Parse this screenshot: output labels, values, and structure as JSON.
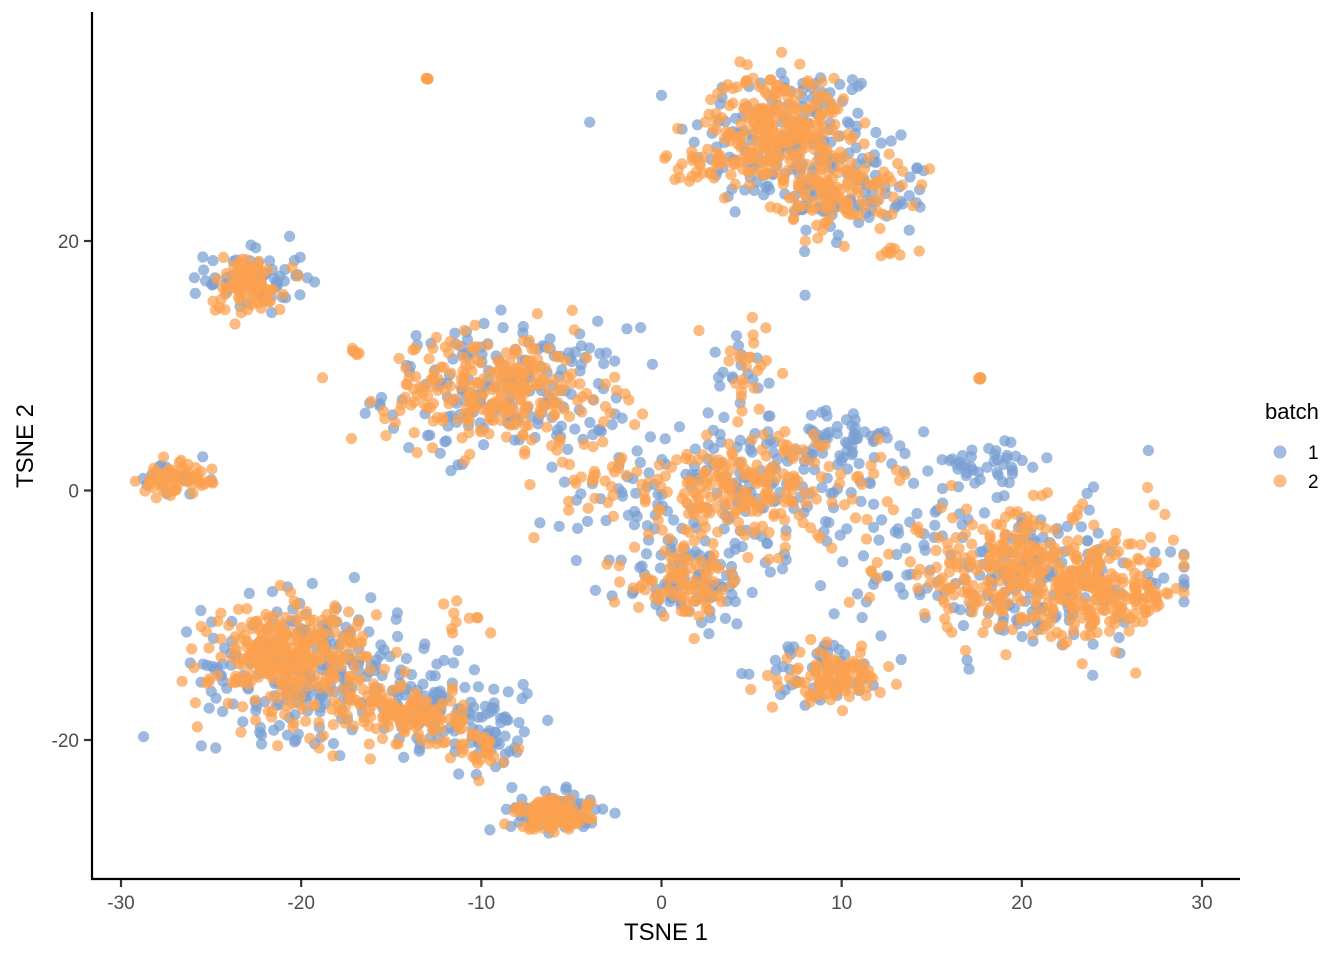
{
  "chart_data": {
    "type": "scatter",
    "title": "",
    "xlabel": "TSNE 1",
    "ylabel": "TSNE 2",
    "xlim": [
      -31.7,
      32
    ],
    "ylim": [
      -31,
      38.3
    ],
    "x_ticks": [
      -30,
      -20,
      -10,
      0,
      10,
      20,
      30
    ],
    "y_ticks": [
      -20,
      0,
      20
    ],
    "x_tick_labels": [
      "-30",
      "-20",
      "-10",
      "0",
      "10",
      "20",
      "30"
    ],
    "y_tick_labels": [
      "-20",
      "0",
      "20"
    ],
    "grid": false,
    "legend": {
      "title": "batch",
      "position": "right",
      "entries": [
        {
          "label": "1",
          "color": "#7aa0d2"
        },
        {
          "label": "2",
          "color": "#fba14f"
        }
      ]
    },
    "series": [
      {
        "name": "1",
        "color": "#7aa0d2",
        "clusters": [
          {
            "cx": 7.0,
            "cy": 28.0,
            "sx": 3.2,
            "sy": 3.8,
            "n": 170
          },
          {
            "cx": 11.0,
            "cy": 23.5,
            "sx": 2.3,
            "sy": 2.2,
            "n": 70
          },
          {
            "cx": -22.5,
            "cy": 17.0,
            "sx": 1.6,
            "sy": 1.7,
            "n": 60
          },
          {
            "cx": -8.5,
            "cy": 8.0,
            "sx": 4.0,
            "sy": 3.0,
            "n": 190
          },
          {
            "cx": 5.0,
            "cy": 0.0,
            "sx": 5.5,
            "sy": 3.5,
            "n": 200
          },
          {
            "cx": 18.0,
            "cy": 2.0,
            "sx": 2.2,
            "sy": 1.0,
            "n": 40
          },
          {
            "cx": 10.0,
            "cy": 4.5,
            "sx": 2.0,
            "sy": 1.2,
            "n": 40
          },
          {
            "cx": 20.0,
            "cy": -7.0,
            "sx": 5.0,
            "sy": 3.5,
            "n": 210
          },
          {
            "cx": 1.5,
            "cy": -7.5,
            "sx": 2.2,
            "sy": 2.0,
            "n": 80
          },
          {
            "cx": 9.0,
            "cy": -14.5,
            "sx": 2.0,
            "sy": 1.5,
            "n": 50
          },
          {
            "cx": -20.0,
            "cy": -14.0,
            "sx": 3.2,
            "sy": 3.2,
            "n": 230
          },
          {
            "cx": -13.5,
            "cy": -17.0,
            "sx": 2.2,
            "sy": 2.2,
            "n": 90
          },
          {
            "cx": -9.5,
            "cy": -19.0,
            "sx": 1.5,
            "sy": 2.5,
            "n": 60
          },
          {
            "cx": -6.0,
            "cy": -25.8,
            "sx": 1.4,
            "sy": 0.9,
            "n": 70
          },
          {
            "cx": -27.0,
            "cy": 0.8,
            "sx": 1.2,
            "sy": 0.9,
            "n": 25
          },
          {
            "cx": 4.5,
            "cy": 9.5,
            "sx": 1.2,
            "sy": 2.5,
            "n": 20
          }
        ]
      },
      {
        "name": "2",
        "color": "#fba14f",
        "clusters": [
          {
            "cx": 6.5,
            "cy": 29.5,
            "sx": 2.2,
            "sy": 2.3,
            "n": 230
          },
          {
            "cx": 4.0,
            "cy": 26.0,
            "sx": 2.2,
            "sy": 1.5,
            "n": 60
          },
          {
            "cx": 10.0,
            "cy": 24.0,
            "sx": 2.0,
            "sy": 1.8,
            "n": 120
          },
          {
            "cx": -23.0,
            "cy": 16.5,
            "sx": 1.2,
            "sy": 1.4,
            "n": 90
          },
          {
            "cx": -9.0,
            "cy": 8.0,
            "sx": 3.6,
            "sy": 2.6,
            "n": 260
          },
          {
            "cx": 4.5,
            "cy": 0.0,
            "sx": 4.5,
            "sy": 2.6,
            "n": 230
          },
          {
            "cx": 20.0,
            "cy": -6.5,
            "sx": 4.5,
            "sy": 2.8,
            "n": 300
          },
          {
            "cx": 24.5,
            "cy": -8.5,
            "sx": 2.3,
            "sy": 2.0,
            "n": 160
          },
          {
            "cx": 1.5,
            "cy": -7.5,
            "sx": 1.8,
            "sy": 1.5,
            "n": 90
          },
          {
            "cx": 9.5,
            "cy": -15.0,
            "sx": 1.6,
            "sy": 1.2,
            "n": 100
          },
          {
            "cx": -20.5,
            "cy": -13.5,
            "sx": 2.6,
            "sy": 2.6,
            "n": 320
          },
          {
            "cx": -14.0,
            "cy": -18.0,
            "sx": 1.8,
            "sy": 1.5,
            "n": 120
          },
          {
            "cx": -10.0,
            "cy": -21.0,
            "sx": 0.8,
            "sy": 1.0,
            "n": 30
          },
          {
            "cx": -6.0,
            "cy": -26.0,
            "sx": 1.2,
            "sy": 0.7,
            "n": 120
          },
          {
            "cx": -27.0,
            "cy": 0.8,
            "sx": 1.2,
            "sy": 0.8,
            "n": 60
          },
          {
            "cx": -13.0,
            "cy": 33.0,
            "sx": 0.05,
            "sy": 0.05,
            "n": 6
          },
          {
            "cx": 17.7,
            "cy": 9.0,
            "sx": 0.05,
            "sy": 0.05,
            "n": 6
          },
          {
            "cx": -17.0,
            "cy": 11.2,
            "sx": 0.15,
            "sy": 0.15,
            "n": 6
          },
          {
            "cx": 12.8,
            "cy": 19.0,
            "sx": 0.6,
            "sy": 0.4,
            "n": 8
          },
          {
            "cx": -11.0,
            "cy": -10.5,
            "sx": 0.7,
            "sy": 0.8,
            "n": 10
          },
          {
            "cx": 4.5,
            "cy": 8.5,
            "sx": 0.8,
            "sy": 3.0,
            "n": 25
          },
          {
            "cx": -3.0,
            "cy": 1.0,
            "sx": 2.0,
            "sy": 1.2,
            "n": 20
          }
        ]
      }
    ]
  }
}
